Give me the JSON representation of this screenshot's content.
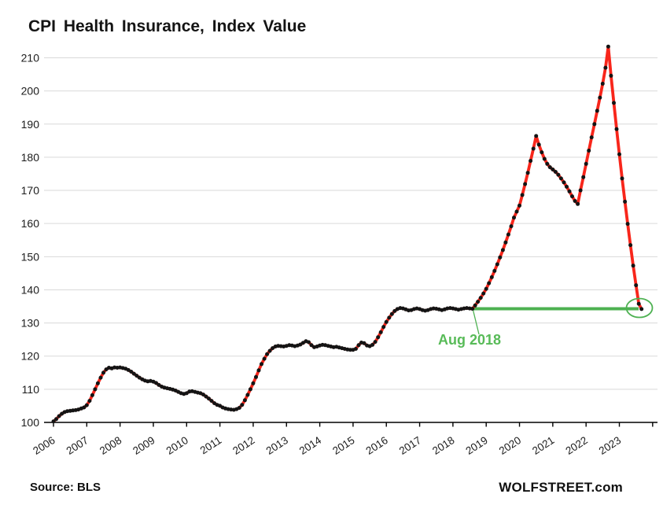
{
  "header": {
    "title": "CPI Health Insurance, Index Value"
  },
  "footer": {
    "source": "Source: BLS",
    "watermark": "WOLFSTREET.com"
  },
  "chart_data": {
    "type": "line",
    "title": "CPI Health Insurance, Index Value",
    "xlabel": "",
    "ylabel": "Index Value",
    "frequency": "monthly",
    "x_start": "2006-01",
    "x_end": "2023-09",
    "ylim": [
      100,
      215
    ],
    "grid": "horizontal",
    "legend": "none",
    "series_color": "#f8261b",
    "marker_color": "#141414",
    "gridline_color": "#d9d9d9",
    "axis_color": "#000000",
    "y_ticks": [
      100,
      110,
      120,
      130,
      140,
      150,
      160,
      170,
      180,
      190,
      200,
      210
    ],
    "x_tick_labels": [
      "2006",
      "2007",
      "2008",
      "2009",
      "2010",
      "2011",
      "2012",
      "2013",
      "2014",
      "2015",
      "2016",
      "2017",
      "2018",
      "2019",
      "2020",
      "2021",
      "2022",
      "2023"
    ],
    "values": [
      100.3,
      101.0,
      101.9,
      102.6,
      103.1,
      103.4,
      103.5,
      103.6,
      103.7,
      103.9,
      104.2,
      104.5,
      105.2,
      106.5,
      108.2,
      110.0,
      111.8,
      113.5,
      115.0,
      116.0,
      116.5,
      116.3,
      116.6,
      116.5,
      116.6,
      116.4,
      116.2,
      115.8,
      115.3,
      114.7,
      114.1,
      113.5,
      113.0,
      112.6,
      112.4,
      112.5,
      112.3,
      111.9,
      111.3,
      110.8,
      110.5,
      110.3,
      110.1,
      109.9,
      109.6,
      109.2,
      108.8,
      108.6,
      108.8,
      109.3,
      109.4,
      109.2,
      109.0,
      108.8,
      108.4,
      107.8,
      107.2,
      106.5,
      105.8,
      105.3,
      105.0,
      104.5,
      104.2,
      104.0,
      103.9,
      103.8,
      104.0,
      104.4,
      105.3,
      106.7,
      108.3,
      110.0,
      111.8,
      113.7,
      115.7,
      117.6,
      119.2,
      120.6,
      121.6,
      122.4,
      122.9,
      123.1,
      123.0,
      122.9,
      123.1,
      123.3,
      123.2,
      123.0,
      123.2,
      123.5,
      124.0,
      124.5,
      124.2,
      123.3,
      122.7,
      122.9,
      123.2,
      123.4,
      123.3,
      123.1,
      122.9,
      122.7,
      122.8,
      122.6,
      122.4,
      122.2,
      122.0,
      121.9,
      121.9,
      122.2,
      123.3,
      124.1,
      123.9,
      123.2,
      123.0,
      123.4,
      124.3,
      125.7,
      127.2,
      128.8,
      130.3,
      131.6,
      132.7,
      133.6,
      134.2,
      134.5,
      134.4,
      134.1,
      133.8,
      133.9,
      134.2,
      134.4,
      134.2,
      133.9,
      133.7,
      133.9,
      134.2,
      134.4,
      134.3,
      134.1,
      133.9,
      134.1,
      134.4,
      134.5,
      134.4,
      134.2,
      134.0,
      134.2,
      134.4,
      134.5,
      134.4,
      134.3,
      135.3,
      136.4,
      137.6,
      138.9,
      140.3,
      142.0,
      143.8,
      145.7,
      147.7,
      149.8,
      152.0,
      154.3,
      156.7,
      159.2,
      161.8,
      163.6,
      165.4,
      168.6,
      171.9,
      175.3,
      178.9,
      182.6,
      186.4,
      183.8,
      181.5,
      179.5,
      178.0,
      177.0,
      176.3,
      175.6,
      174.7,
      173.6,
      172.4,
      171.1,
      169.7,
      168.2,
      166.8,
      165.9,
      170.0,
      174.0,
      178.0,
      182.0,
      186.0,
      190.0,
      194.0,
      198.0,
      202.2,
      207.0,
      213.4,
      204.6,
      196.4,
      188.5,
      180.9,
      173.6,
      166.6,
      159.9,
      153.5,
      147.3,
      141.4,
      135.8,
      134.2
    ],
    "annotation": {
      "label": "Aug 2018",
      "start_month": "2018-08",
      "value": 134.3,
      "line_color": "#4db151",
      "label_color": "#58bb58",
      "endpoint_circled": true
    }
  }
}
